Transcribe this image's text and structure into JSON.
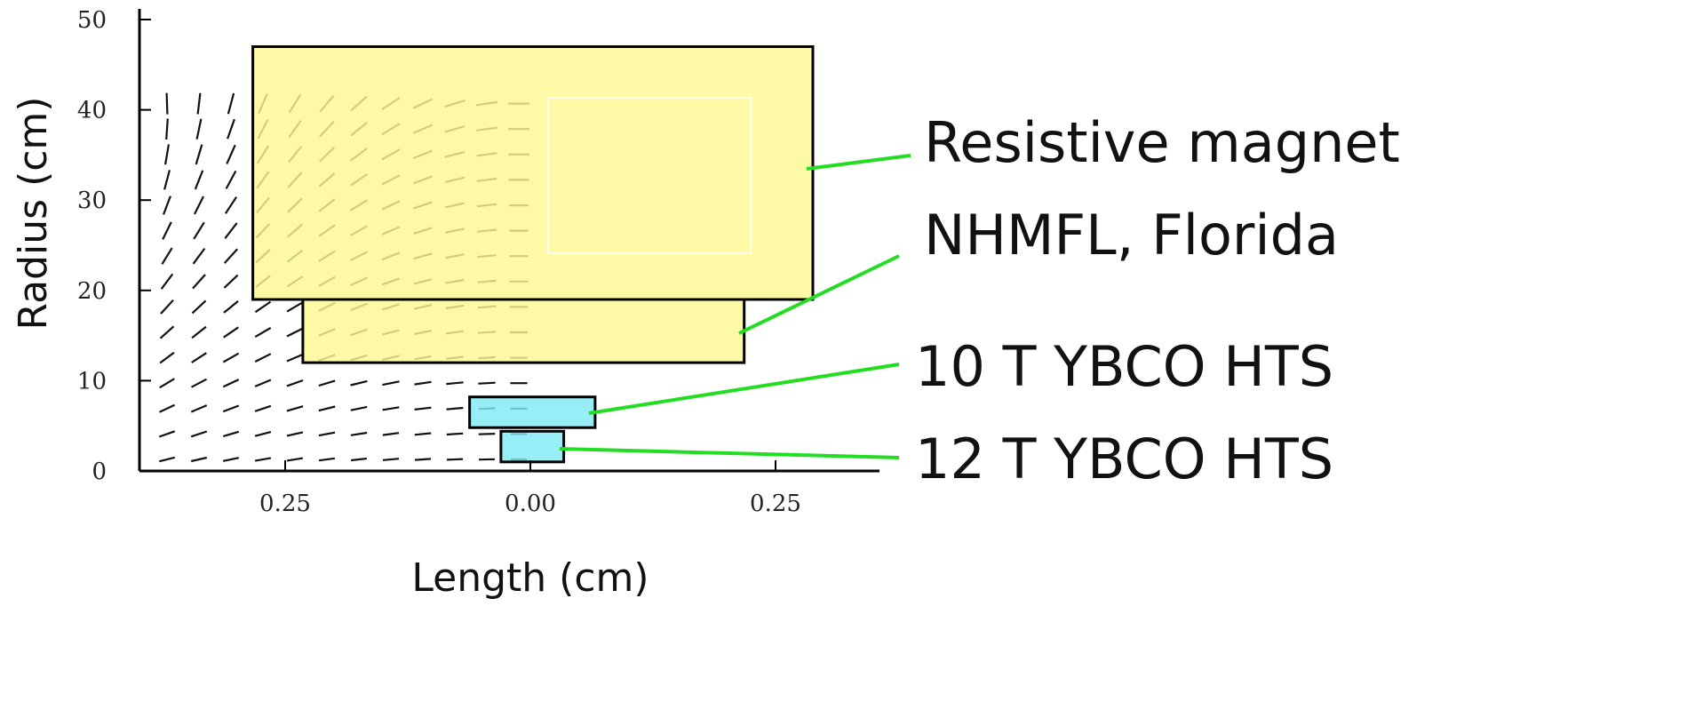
{
  "xaxis": {
    "label": "Length (cm)",
    "ticks": [
      {
        "value": -0.25,
        "label": "0.25"
      },
      {
        "value": 0.0,
        "label": "0.00"
      },
      {
        "value": 0.25,
        "label": "0.25"
      }
    ],
    "range": [
      -0.4,
      0.36
    ]
  },
  "yaxis": {
    "label": "Radius (cm)",
    "ticks": [
      {
        "value": 0,
        "label": "0"
      },
      {
        "value": 10,
        "label": "10"
      },
      {
        "value": 20,
        "label": "20"
      },
      {
        "value": 30,
        "label": "30"
      },
      {
        "value": 40,
        "label": "40"
      },
      {
        "value": 50,
        "label": "50"
      }
    ],
    "range": [
      0,
      51
    ]
  },
  "magnets": [
    {
      "name": "resistive-outer",
      "x0": -0.283,
      "x1": 0.288,
      "y0": 19,
      "y1": 47,
      "fill": "#fdf890"
    },
    {
      "name": "resistive-inner",
      "x0": -0.232,
      "x1": 0.218,
      "y0": 12,
      "y1": 19,
      "fill": "#fdf890"
    },
    {
      "name": "ybco-10t",
      "x0": -0.062,
      "x1": 0.066,
      "y0": 4.8,
      "y1": 8.2,
      "fill": "#80eaf4"
    },
    {
      "name": "ybco-12t",
      "x0": -0.03,
      "x1": 0.034,
      "y0": 1.0,
      "y1": 4.4,
      "fill": "#80eaf4"
    }
  ],
  "callouts": [
    {
      "label": "Resistive magnet"
    },
    {
      "label": "NHMFL, Florida"
    },
    {
      "label": "10 T YBCO HTS"
    },
    {
      "label": "12 T YBCO HTS"
    }
  ],
  "colors": {
    "callout_line": "#22dd22",
    "field_line": "#111111"
  }
}
